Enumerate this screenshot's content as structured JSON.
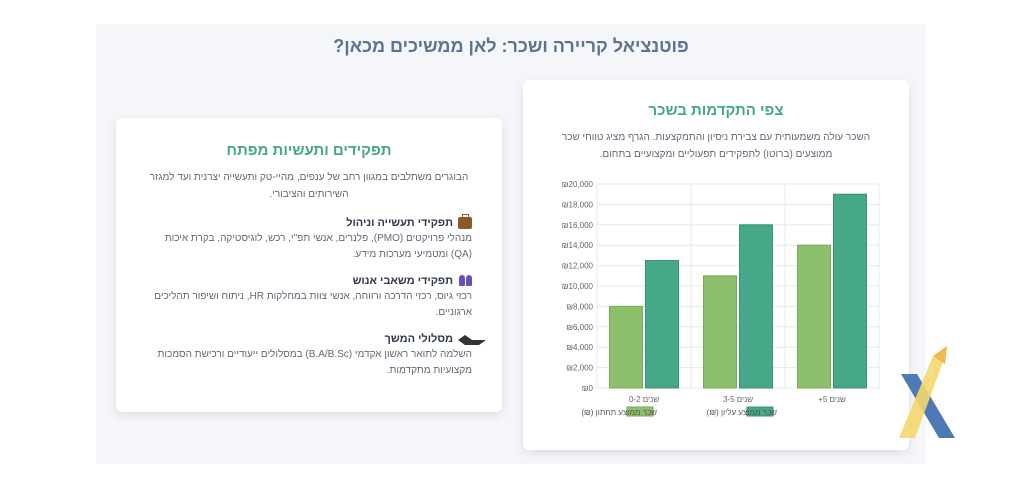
{
  "main_title": "פוטנציאל קריירה ושכר: לאן ממשיכים מכאן?",
  "salary_card": {
    "title": "צפי התקדמות בשכר",
    "description": "השכר עולה משמעותית עם צבירת ניסיון והתמקצעות. הגרף מציג טווחי שכר ממוצעים (ברוטו) לתפקידים תפעוליים ומקצועיים בתחום."
  },
  "roles_card": {
    "title": "תפקידים ותעשיות מפתח",
    "intro": "הבוגרים משתלבים במגוון רחב של ענפים, מהיי-טק ותעשייה יצרנית ועד למגזר השירותים והציבורי.",
    "roles": [
      {
        "icon": "briefcase-icon",
        "title": "תפקידי תעשייה וניהול",
        "text": "מנהלי פרויקטים (PMO), פלנרים, אנשי תפ\"י, רכש, לוגיסטיקה, בקרת איכות (QA) ומטמיעי מערכות מידע."
      },
      {
        "icon": "people-icon",
        "title": "תפקידי משאבי אנוש",
        "text": "רכזי גיוס, רכזי הדרכה ורווחה, אנשי צוות במחלקות HR, ניתוח ושיפור תהליכים ארגוניים."
      },
      {
        "icon": "graduation-cap-icon",
        "title": "מסלולי המשך",
        "text": "השלמה לתואר ראשון אקדמי (B.A/B.Sc) במסלולים ייעודיים ורכישת הסמכות מקצועיות מתקדמות."
      }
    ]
  },
  "chart_data": {
    "type": "bar",
    "title": "",
    "xlabel": "",
    "ylabel": "",
    "categories": [
      "0-2 שנים",
      "3-5 שנים",
      "+5 שנים"
    ],
    "series": [
      {
        "name": "שכר ממוצע תחתון (₪)",
        "values": [
          8000,
          11000,
          14000
        ],
        "color": "#8dc06a"
      },
      {
        "name": "שכר ממוצע עליון (₪)",
        "values": [
          12500,
          16000,
          19000
        ],
        "color": "#45a889"
      }
    ],
    "ylim": [
      0,
      20000
    ],
    "yticks": [
      0,
      2000,
      4000,
      6000,
      8000,
      10000,
      12000,
      14000,
      16000,
      18000,
      20000
    ],
    "ytick_labels": [
      "₪0",
      "₪2,000",
      "₪4,000",
      "₪6,000",
      "₪8,000",
      "₪10,000",
      "₪12,000",
      "₪14,000",
      "₪16,000",
      "₪18,000",
      "₪20,000"
    ],
    "grid": true,
    "legend": "bottom"
  }
}
